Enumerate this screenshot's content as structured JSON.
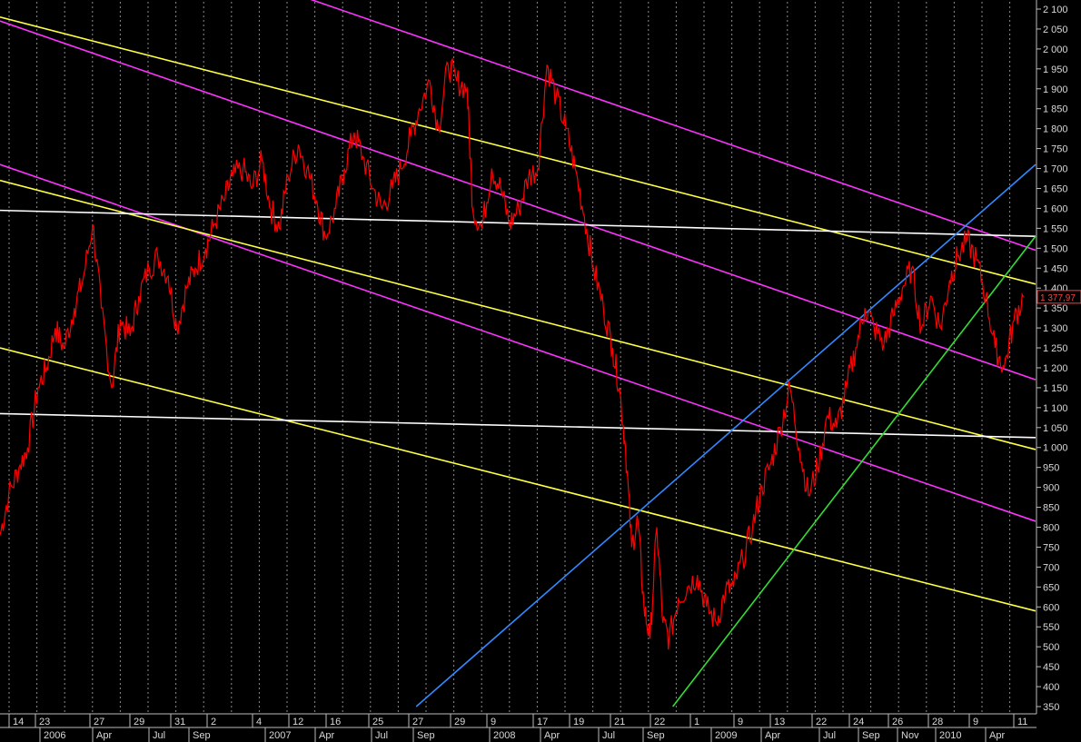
{
  "chart_data": {
    "type": "line",
    "title": "",
    "xlabel": "",
    "ylabel": "",
    "ylim": [
      350,
      2100
    ],
    "y_ticks": [
      "2 100",
      "2 050",
      "2 000",
      "1 950",
      "1 900",
      "1 850",
      "1 800",
      "1 750",
      "1 700",
      "1 650",
      "1 600",
      "1 550",
      "1 500",
      "1 450",
      "1 400",
      "1 350",
      "1 300",
      "1 250",
      "1 200",
      "1 150",
      "1 100",
      "1 050",
      "1 000",
      "950",
      "900",
      "850",
      "800",
      "750",
      "700",
      "650",
      "600",
      "550",
      "500",
      "450",
      "400",
      "350"
    ],
    "x_tick_labels": [
      "14",
      "23",
      "27",
      "29",
      "31",
      "2",
      "4",
      "12",
      "16",
      "25",
      "27",
      "29",
      "9",
      "17",
      "19",
      "21",
      "22",
      "1",
      "9",
      "13",
      "22",
      "24",
      "26",
      "28",
      "9",
      "11"
    ],
    "x_month_labels": [
      "2006",
      "Apr",
      "Jul",
      "Sep",
      "2007",
      "Apr",
      "Jul",
      "Sep",
      "2008",
      "Apr",
      "Jul",
      "Sep",
      "2009",
      "Apr",
      "Jul",
      "Sep",
      "Nov",
      "2010",
      "Apr"
    ],
    "last_price_label": "1 377,97",
    "grid": "vertical dotted",
    "colors": {
      "background": "#000000",
      "price": "#ff0000",
      "magenta": "#ff33ff",
      "yellow": "#ffff44",
      "white": "#ffffff",
      "blue": "#3388ff",
      "green": "#33dd33",
      "axis_text": "#d8d8d8"
    },
    "series": [
      {
        "values": [
          {
            "x": "2005-12-01",
            "y": 780
          },
          {
            "x": "2005-12-15",
            "y": 880
          },
          {
            "x": "2006-01-01",
            "y": 950
          },
          {
            "x": "2006-01-15",
            "y": 1000
          },
          {
            "x": "2006-02-01",
            "y": 1150
          },
          {
            "x": "2006-02-15",
            "y": 1200
          },
          {
            "x": "2006-03-01",
            "y": 1300
          },
          {
            "x": "2006-03-15",
            "y": 1250
          },
          {
            "x": "2006-04-01",
            "y": 1350
          },
          {
            "x": "2006-04-15",
            "y": 1420
          },
          {
            "x": "2006-05-01",
            "y": 1560
          },
          {
            "x": "2006-05-15",
            "y": 1350
          },
          {
            "x": "2006-06-01",
            "y": 1150
          },
          {
            "x": "2006-06-15",
            "y": 1320
          },
          {
            "x": "2006-07-01",
            "y": 1280
          },
          {
            "x": "2006-07-15",
            "y": 1380
          },
          {
            "x": "2006-08-01",
            "y": 1450
          },
          {
            "x": "2006-08-15",
            "y": 1480
          },
          {
            "x": "2006-09-01",
            "y": 1430
          },
          {
            "x": "2006-09-15",
            "y": 1300
          },
          {
            "x": "2006-10-01",
            "y": 1400
          },
          {
            "x": "2006-10-15",
            "y": 1450
          },
          {
            "x": "2006-11-01",
            "y": 1500
          },
          {
            "x": "2006-11-15",
            "y": 1560
          },
          {
            "x": "2006-12-01",
            "y": 1620
          },
          {
            "x": "2006-12-15",
            "y": 1680
          },
          {
            "x": "2007-01-01",
            "y": 1700
          },
          {
            "x": "2007-01-15",
            "y": 1650
          },
          {
            "x": "2007-02-01",
            "y": 1720
          },
          {
            "x": "2007-02-15",
            "y": 1600
          },
          {
            "x": "2007-03-01",
            "y": 1550
          },
          {
            "x": "2007-03-15",
            "y": 1680
          },
          {
            "x": "2007-04-01",
            "y": 1760
          },
          {
            "x": "2007-04-15",
            "y": 1700
          },
          {
            "x": "2007-05-01",
            "y": 1620
          },
          {
            "x": "2007-05-15",
            "y": 1530
          },
          {
            "x": "2007-06-01",
            "y": 1600
          },
          {
            "x": "2007-06-15",
            "y": 1700
          },
          {
            "x": "2007-07-01",
            "y": 1790
          },
          {
            "x": "2007-07-15",
            "y": 1730
          },
          {
            "x": "2007-08-01",
            "y": 1650
          },
          {
            "x": "2007-08-15",
            "y": 1600
          },
          {
            "x": "2007-09-01",
            "y": 1650
          },
          {
            "x": "2007-09-15",
            "y": 1700
          },
          {
            "x": "2007-10-01",
            "y": 1780
          },
          {
            "x": "2007-10-15",
            "y": 1850
          },
          {
            "x": "2007-11-01",
            "y": 1920
          },
          {
            "x": "2007-11-15",
            "y": 1800
          },
          {
            "x": "2007-12-01",
            "y": 1960
          },
          {
            "x": "2007-12-15",
            "y": 1920
          },
          {
            "x": "2008-01-01",
            "y": 1900
          },
          {
            "x": "2008-01-10",
            "y": 1600
          },
          {
            "x": "2008-01-25",
            "y": 1550
          },
          {
            "x": "2008-02-10",
            "y": 1700
          },
          {
            "x": "2008-02-25",
            "y": 1650
          },
          {
            "x": "2008-03-10",
            "y": 1560
          },
          {
            "x": "2008-03-25",
            "y": 1600
          },
          {
            "x": "2008-04-10",
            "y": 1680
          },
          {
            "x": "2008-04-25",
            "y": 1700
          },
          {
            "x": "2008-05-10",
            "y": 1960
          },
          {
            "x": "2008-05-25",
            "y": 1880
          },
          {
            "x": "2008-06-10",
            "y": 1800
          },
          {
            "x": "2008-06-25",
            "y": 1700
          },
          {
            "x": "2008-07-10",
            "y": 1580
          },
          {
            "x": "2008-07-25",
            "y": 1450
          },
          {
            "x": "2008-08-10",
            "y": 1350
          },
          {
            "x": "2008-08-25",
            "y": 1250
          },
          {
            "x": "2008-09-05",
            "y": 1150
          },
          {
            "x": "2008-09-15",
            "y": 1000
          },
          {
            "x": "2008-09-25",
            "y": 750
          },
          {
            "x": "2008-10-05",
            "y": 820
          },
          {
            "x": "2008-10-15",
            "y": 600
          },
          {
            "x": "2008-10-25",
            "y": 520
          },
          {
            "x": "2008-11-05",
            "y": 800
          },
          {
            "x": "2008-11-15",
            "y": 560
          },
          {
            "x": "2008-11-25",
            "y": 520
          },
          {
            "x": "2008-12-10",
            "y": 620
          },
          {
            "x": "2008-12-25",
            "y": 650
          },
          {
            "x": "2009-01-10",
            "y": 680
          },
          {
            "x": "2009-01-25",
            "y": 600
          },
          {
            "x": "2009-02-10",
            "y": 560
          },
          {
            "x": "2009-02-25",
            "y": 640
          },
          {
            "x": "2009-03-10",
            "y": 650
          },
          {
            "x": "2009-03-25",
            "y": 720
          },
          {
            "x": "2009-04-10",
            "y": 800
          },
          {
            "x": "2009-04-25",
            "y": 900
          },
          {
            "x": "2009-05-10",
            "y": 960
          },
          {
            "x": "2009-05-25",
            "y": 1050
          },
          {
            "x": "2009-06-10",
            "y": 1150
          },
          {
            "x": "2009-06-25",
            "y": 1000
          },
          {
            "x": "2009-07-10",
            "y": 880
          },
          {
            "x": "2009-07-25",
            "y": 950
          },
          {
            "x": "2009-08-10",
            "y": 1080
          },
          {
            "x": "2009-08-25",
            "y": 1050
          },
          {
            "x": "2009-09-10",
            "y": 1150
          },
          {
            "x": "2009-09-25",
            "y": 1250
          },
          {
            "x": "2009-10-10",
            "y": 1350
          },
          {
            "x": "2009-10-25",
            "y": 1300
          },
          {
            "x": "2009-11-10",
            "y": 1260
          },
          {
            "x": "2009-11-25",
            "y": 1330
          },
          {
            "x": "2009-12-10",
            "y": 1400
          },
          {
            "x": "2009-12-25",
            "y": 1450
          },
          {
            "x": "2010-01-10",
            "y": 1300
          },
          {
            "x": "2010-01-25",
            "y": 1380
          },
          {
            "x": "2010-02-10",
            "y": 1300
          },
          {
            "x": "2010-02-25",
            "y": 1420
          },
          {
            "x": "2010-03-10",
            "y": 1480
          },
          {
            "x": "2010-03-25",
            "y": 1520
          },
          {
            "x": "2010-04-10",
            "y": 1470
          },
          {
            "x": "2010-04-25",
            "y": 1380
          },
          {
            "x": "2010-05-10",
            "y": 1250
          },
          {
            "x": "2010-05-25",
            "y": 1200
          },
          {
            "x": "2010-06-10",
            "y": 1320
          },
          {
            "x": "2010-06-25",
            "y": 1378
          }
        ]
      }
    ],
    "trendlines": [
      {
        "color": "magenta",
        "from": {
          "x": "2007-04-01",
          "y": 2135
        },
        "to": {
          "x": "2010-07-15",
          "y": 1495
        }
      },
      {
        "color": "magenta",
        "from": {
          "x": "2005-12-01",
          "y": 2070
        },
        "to": {
          "x": "2010-07-15",
          "y": 1170
        }
      },
      {
        "color": "magenta",
        "from": {
          "x": "2005-12-01",
          "y": 1710
        },
        "to": {
          "x": "2010-07-15",
          "y": 815
        }
      },
      {
        "color": "yellow",
        "from": {
          "x": "2005-12-01",
          "y": 2080
        },
        "to": {
          "x": "2010-07-15",
          "y": 1410
        }
      },
      {
        "color": "yellow",
        "from": {
          "x": "2005-12-01",
          "y": 1670
        },
        "to": {
          "x": "2010-07-15",
          "y": 995
        }
      },
      {
        "color": "yellow",
        "from": {
          "x": "2005-12-01",
          "y": 1250
        },
        "to": {
          "x": "2010-07-15",
          "y": 590
        }
      },
      {
        "color": "white",
        "from": {
          "x": "2005-12-01",
          "y": 1595
        },
        "to": {
          "x": "2010-07-15",
          "y": 1530
        }
      },
      {
        "color": "white",
        "from": {
          "x": "2005-12-01",
          "y": 1085
        },
        "to": {
          "x": "2010-07-15",
          "y": 1025
        }
      },
      {
        "color": "blue",
        "from": {
          "x": "2007-10-10",
          "y": 350
        },
        "to": {
          "x": "2010-07-15",
          "y": 1710
        }
      },
      {
        "color": "green",
        "from": {
          "x": "2008-12-01",
          "y": 350
        },
        "to": {
          "x": "2010-07-15",
          "y": 1530
        }
      }
    ]
  }
}
